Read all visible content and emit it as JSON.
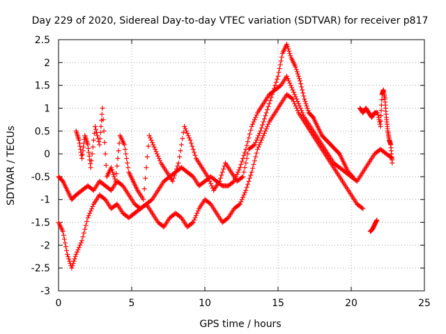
{
  "chart_data": {
    "type": "scatter",
    "title": "Day 229 of 2020, Sidereal Day-to-day VTEC variation (SDTVAR) for receiver p817",
    "xlabel": "GPS time / hours",
    "ylabel": "SDTVAR / TECUs",
    "xlim": [
      0,
      25
    ],
    "ylim": [
      -3,
      2.5
    ],
    "xticks": [
      0,
      5,
      10,
      15,
      20,
      25
    ],
    "xtick_labels": [
      "0",
      "5",
      "10",
      "15",
      "20",
      "25"
    ],
    "yticks": [
      -3,
      -2.5,
      -2,
      -1.5,
      -1,
      -0.5,
      0,
      0.5,
      1,
      1.5,
      2,
      2.5
    ],
    "ytick_labels": [
      "-3",
      "-2.5",
      "-2",
      "-1.5",
      "-1",
      "-0.5",
      "0",
      "0.5",
      "1",
      "1.5",
      "2",
      "2.5"
    ],
    "grid": true,
    "marker": "plus",
    "color": "#ff0000",
    "series": [
      {
        "name": "s1",
        "x": [
          0.0,
          0.3,
          0.6,
          0.9,
          1.2,
          1.6,
          2.0,
          2.4,
          2.8,
          3.2,
          3.6,
          4.0,
          4.4,
          4.8,
          5.2,
          5.6,
          6.0,
          6.4,
          6.8,
          7.2,
          7.6,
          8.0,
          8.4,
          8.8,
          9.2,
          9.6,
          10.0,
          10.4,
          10.8,
          11.2,
          11.6,
          12.0,
          12.4,
          12.8,
          13.2,
          13.6,
          14.0,
          14.4,
          14.8,
          15.2,
          15.6,
          16.0,
          16.4,
          16.8,
          17.2,
          17.6,
          18.0,
          18.4,
          18.8,
          19.2,
          19.6,
          20.0,
          20.4,
          20.8,
          21.2,
          21.6,
          22.0,
          22.4,
          22.8
        ],
        "y": [
          -0.5,
          -0.6,
          -0.8,
          -1.0,
          -0.9,
          -0.8,
          -0.7,
          -0.8,
          -0.6,
          -0.7,
          -0.8,
          -0.6,
          -0.7,
          -0.9,
          -1.1,
          -1.2,
          -1.1,
          -1.0,
          -0.8,
          -0.6,
          -0.5,
          -0.4,
          -0.3,
          -0.4,
          -0.5,
          -0.7,
          -0.6,
          -0.5,
          -0.6,
          -0.7,
          -0.7,
          -0.6,
          -0.3,
          0.1,
          0.6,
          0.9,
          1.1,
          1.3,
          1.4,
          1.5,
          1.7,
          1.4,
          1.1,
          0.8,
          0.6,
          0.4,
          0.2,
          0.0,
          -0.2,
          -0.3,
          -0.4,
          -0.5,
          -0.6,
          -0.4,
          -0.2,
          0.0,
          0.1,
          0.0,
          -0.1
        ]
      },
      {
        "name": "s2",
        "x": [
          0.0,
          0.3,
          0.6,
          0.9,
          1.2,
          1.6,
          2.0,
          2.4,
          2.8,
          3.2,
          3.6,
          4.0,
          4.4,
          4.8,
          5.2,
          5.6,
          6.0,
          6.4,
          6.8,
          7.2,
          7.6,
          8.0,
          8.4,
          8.8,
          9.2,
          9.6,
          10.0,
          10.4,
          10.8,
          11.2,
          11.6,
          12.0,
          12.4,
          12.8,
          13.2,
          13.6,
          14.0,
          14.4,
          14.8,
          15.2,
          15.6,
          16.0,
          16.4,
          16.8,
          17.2,
          17.6,
          18.0,
          18.4,
          18.8,
          19.2,
          19.6,
          20.0,
          20.4,
          20.8
        ],
        "y": [
          -1.5,
          -1.7,
          -2.2,
          -2.5,
          -2.2,
          -1.9,
          -1.4,
          -1.1,
          -0.9,
          -1.0,
          -1.2,
          -1.1,
          -1.3,
          -1.4,
          -1.3,
          -1.2,
          -1.1,
          -1.3,
          -1.5,
          -1.6,
          -1.4,
          -1.3,
          -1.4,
          -1.6,
          -1.5,
          -1.2,
          -1.0,
          -1.1,
          -1.3,
          -1.5,
          -1.4,
          -1.2,
          -1.1,
          -0.8,
          -0.4,
          0.1,
          0.4,
          0.7,
          0.9,
          1.1,
          1.3,
          1.2,
          0.9,
          0.7,
          0.5,
          0.3,
          0.1,
          -0.1,
          -0.3,
          -0.5,
          -0.7,
          -0.9,
          -1.1,
          -1.2
        ]
      },
      {
        "name": "s3",
        "x": [
          1.2,
          1.4,
          1.6,
          1.8,
          2.0,
          2.2,
          2.5,
          2.8,
          3.0,
          3.3,
          3.6,
          3.9,
          4.2,
          4.5,
          4.8,
          5.1,
          5.4,
          5.8,
          6.2,
          6.6,
          7.0,
          7.4,
          7.8,
          8.2,
          8.6,
          9.0,
          9.4,
          9.8,
          10.2,
          10.6,
          11.0,
          11.4,
          11.8,
          12.2,
          12.6,
          13.0,
          13.4,
          13.8,
          14.2,
          14.6,
          15.0,
          15.3,
          15.6,
          15.9,
          16.2,
          16.5,
          16.8,
          17.1,
          17.4,
          17.7,
          18.0,
          18.3,
          18.6,
          18.9,
          19.2,
          19.5,
          19.8,
          20.1
        ],
        "y": [
          0.5,
          0.3,
          -0.1,
          0.4,
          0.2,
          -0.3,
          0.6,
          0.2,
          1.0,
          -0.5,
          -0.3,
          -0.6,
          0.4,
          0.2,
          -0.4,
          -0.6,
          -0.8,
          -1.0,
          0.4,
          0.1,
          -0.2,
          -0.4,
          -0.6,
          -0.2,
          0.6,
          0.3,
          -0.1,
          -0.3,
          -0.5,
          -0.8,
          -0.6,
          -0.2,
          -0.4,
          -0.6,
          -0.5,
          0.1,
          0.2,
          0.5,
          0.9,
          1.3,
          1.7,
          2.2,
          2.4,
          2.1,
          1.9,
          1.6,
          1.2,
          0.9,
          0.8,
          0.6,
          0.4,
          0.3,
          0.2,
          0.1,
          0.0,
          -0.2,
          -0.4,
          -0.5
        ]
      },
      {
        "name": "s4",
        "x": [
          21.3,
          21.45,
          21.6,
          21.75
        ],
        "y": [
          -1.7,
          -1.65,
          -1.55,
          -1.45
        ]
      },
      {
        "name": "s5",
        "x": [
          20.6,
          20.8,
          21.0,
          21.2,
          21.4,
          21.6,
          21.8,
          22.0,
          22.1,
          22.2,
          22.3,
          22.4,
          22.5,
          22.6,
          22.7,
          22.8
        ],
        "y": [
          1.0,
          0.9,
          1.0,
          0.9,
          0.8,
          0.9,
          0.9,
          0.6,
          1.3,
          1.4,
          1.2,
          0.8,
          0.5,
          0.3,
          0.2,
          -0.2
        ]
      }
    ]
  }
}
